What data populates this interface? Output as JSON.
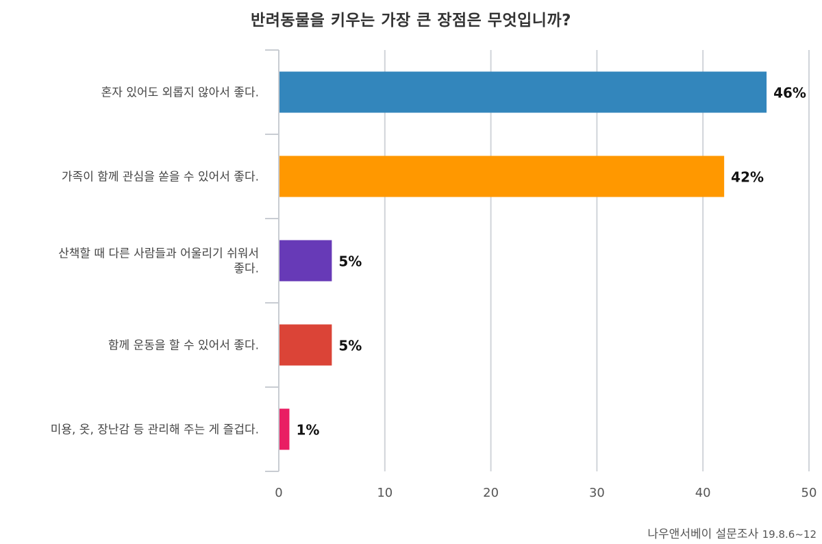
{
  "chart_data": {
    "type": "bar",
    "orientation": "horizontal",
    "title": "반려동물을 키우는 가장 큰 장점은 무엇입니까?",
    "categories": [
      "혼자 있어도 외롭지 않아서 좋다.",
      "가족이 함께 관심을 쏟을 수 있어서 좋다.",
      "산책할 때 다른 사람들과 어울리기 쉬워서 좋다.",
      "함께 운동을 할 수 있어서 좋다.",
      "미용, 옷, 장난감 등 관리해 주는 게 즐겁다."
    ],
    "category_lines": [
      [
        "혼자 있어도 외롭지 않아서 좋다."
      ],
      [
        "가족이 함께 관심을 쏟을 수 있어서 좋다."
      ],
      [
        "산책할 때 다른 사람들과 어울리기 쉬워서",
        "좋다."
      ],
      [
        "함께 운동을 할 수 있어서 좋다."
      ],
      [
        "미용, 옷, 장난감 등 관리해 주는 게 즐겁다."
      ]
    ],
    "values": [
      46,
      42,
      5,
      5,
      1
    ],
    "data_labels": [
      "46%",
      "42%",
      "5%",
      "5%",
      "1%"
    ],
    "colors": [
      "#3386bc",
      "#ff9800",
      "#673ab7",
      "#db4437",
      "#e91e63"
    ],
    "xlim": [
      0,
      50
    ],
    "xticks": [
      0,
      10,
      20,
      30,
      40,
      50
    ],
    "grid": true,
    "xlabel": "",
    "ylabel": ""
  },
  "source": {
    "name": "나우앤서베이 설문조사",
    "date": "19.8.6~12"
  }
}
